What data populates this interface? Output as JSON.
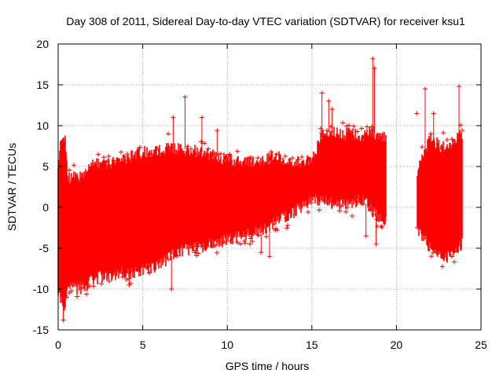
{
  "chart_data": {
    "type": "scatter",
    "title": "Day 308 of 2011, Sidereal Day-to-day VTEC variation (SDTVAR) for receiver ksu1",
    "xlabel": "GPS time / hours",
    "ylabel": "SDTVAR / TECUs",
    "xlim": [
      0,
      25
    ],
    "ylim": [
      -15,
      20
    ],
    "xticks": [
      0,
      5,
      10,
      15,
      20,
      25
    ],
    "yticks": [
      -15,
      -10,
      -5,
      0,
      5,
      10,
      15,
      20
    ],
    "xtick_labels": [
      "0",
      "5",
      "10",
      "15",
      "20",
      "25"
    ],
    "ytick_labels": [
      "-15",
      "-10",
      "-5",
      "0",
      "5",
      "10",
      "15",
      "20"
    ],
    "grid": true,
    "marker": "+",
    "color": "#ff0000",
    "series": [
      {
        "name": "SDTVAR",
        "envelope": [
          {
            "t": 0.0,
            "lo": -10.5,
            "hi": 4.5
          },
          {
            "t": 0.2,
            "lo": -11.5,
            "hi": 9.0
          },
          {
            "t": 0.4,
            "lo": -12.5,
            "hi": 8.5
          },
          {
            "t": 0.6,
            "lo": -9.5,
            "hi": 3.5
          },
          {
            "t": 1.0,
            "lo": -10.0,
            "hi": 3.8
          },
          {
            "t": 1.5,
            "lo": -9.8,
            "hi": 4.0
          },
          {
            "t": 2.0,
            "lo": -9.0,
            "hi": 5.5
          },
          {
            "t": 2.5,
            "lo": -8.5,
            "hi": 5.2
          },
          {
            "t": 3.0,
            "lo": -8.3,
            "hi": 5.3
          },
          {
            "t": 4.0,
            "lo": -8.0,
            "hi": 6.0
          },
          {
            "t": 5.0,
            "lo": -7.8,
            "hi": 6.8
          },
          {
            "t": 6.0,
            "lo": -7.0,
            "hi": 7.0
          },
          {
            "t": 7.0,
            "lo": -5.5,
            "hi": 7.2
          },
          {
            "t": 8.0,
            "lo": -5.0,
            "hi": 7.0
          },
          {
            "t": 9.0,
            "lo": -4.5,
            "hi": 6.5
          },
          {
            "t": 10.0,
            "lo": -4.0,
            "hi": 5.8
          },
          {
            "t": 11.0,
            "lo": -3.3,
            "hi": 5.5
          },
          {
            "t": 12.0,
            "lo": -3.0,
            "hi": 5.8
          },
          {
            "t": 13.0,
            "lo": -1.5,
            "hi": 6.2
          },
          {
            "t": 14.0,
            "lo": -0.5,
            "hi": 5.5
          },
          {
            "t": 15.0,
            "lo": 0.8,
            "hi": 5.6
          },
          {
            "t": 15.5,
            "lo": 1.0,
            "hi": 8.5
          },
          {
            "t": 16.0,
            "lo": 0.5,
            "hi": 9.2
          },
          {
            "t": 17.0,
            "lo": 0.3,
            "hi": 9.0
          },
          {
            "t": 18.0,
            "lo": 1.0,
            "hi": 8.8
          },
          {
            "t": 18.6,
            "lo": -0.5,
            "hi": 9.3
          },
          {
            "t": 19.0,
            "lo": -1.2,
            "hi": 8.5
          },
          {
            "t": 19.4,
            "lo": -2.0,
            "hi": 8.5
          },
          {
            "t": 19.5,
            "lo": null,
            "hi": null
          },
          {
            "t": 21.1,
            "lo": null,
            "hi": null
          },
          {
            "t": 21.2,
            "lo": -3.0,
            "hi": 4.0
          },
          {
            "t": 21.6,
            "lo": -3.5,
            "hi": 6.5
          },
          {
            "t": 22.0,
            "lo": -5.0,
            "hi": 8.5
          },
          {
            "t": 22.4,
            "lo": -5.5,
            "hi": 7.8
          },
          {
            "t": 23.0,
            "lo": -6.0,
            "hi": 7.0
          },
          {
            "t": 23.5,
            "lo": -5.0,
            "hi": 8.5
          },
          {
            "t": 23.9,
            "lo": -4.5,
            "hi": 8.7
          }
        ],
        "outliers": [
          {
            "x": 0.3,
            "y": -13.8
          },
          {
            "x": 6.7,
            "y": -10.0
          },
          {
            "x": 6.8,
            "y": 11.0
          },
          {
            "x": 7.5,
            "y": 13.5
          },
          {
            "x": 8.5,
            "y": 11.0
          },
          {
            "x": 9.4,
            "y": 9.4
          },
          {
            "x": 4.2,
            "y": -9.5
          },
          {
            "x": 15.6,
            "y": 14.0
          },
          {
            "x": 16.0,
            "y": 13.0
          },
          {
            "x": 16.2,
            "y": 12.0
          },
          {
            "x": 18.6,
            "y": 18.2
          },
          {
            "x": 18.7,
            "y": 17.0
          },
          {
            "x": 18.8,
            "y": -4.5
          },
          {
            "x": 18.2,
            "y": -3.5
          },
          {
            "x": 19.3,
            "y": -1.5
          },
          {
            "x": 21.7,
            "y": 14.5
          },
          {
            "x": 22.2,
            "y": 11.5
          },
          {
            "x": 23.7,
            "y": 14.8
          },
          {
            "x": 12.0,
            "y": -5.5
          },
          {
            "x": 12.5,
            "y": -6.0
          },
          {
            "x": 21.2,
            "y": 11.5
          }
        ]
      }
    ]
  }
}
